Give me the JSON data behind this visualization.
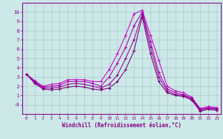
{
  "x": [
    0,
    1,
    2,
    3,
    4,
    5,
    6,
    7,
    8,
    9,
    10,
    11,
    12,
    13,
    14,
    15,
    16,
    17,
    18,
    19,
    20,
    21,
    22,
    23
  ],
  "lines": [
    [
      3.3,
      2.6,
      2.0,
      2.2,
      2.3,
      2.7,
      2.7,
      2.7,
      2.5,
      2.5,
      3.8,
      5.5,
      7.5,
      9.8,
      10.2,
      7.5,
      4.8,
      2.0,
      1.5,
      1.3,
      0.8,
      -0.4,
      -0.2,
      -0.3
    ],
    [
      3.3,
      2.5,
      1.9,
      2.0,
      2.1,
      2.5,
      2.5,
      2.5,
      2.3,
      2.0,
      3.0,
      4.5,
      6.2,
      8.5,
      10.0,
      6.8,
      3.5,
      1.7,
      1.3,
      1.1,
      0.7,
      -0.5,
      -0.3,
      -0.4
    ],
    [
      3.3,
      2.4,
      1.8,
      1.8,
      1.9,
      2.2,
      2.3,
      2.2,
      2.0,
      1.8,
      2.2,
      3.2,
      5.0,
      7.0,
      9.8,
      6.2,
      3.0,
      1.5,
      1.1,
      1.0,
      0.6,
      -0.6,
      -0.4,
      -0.5
    ],
    [
      3.3,
      2.3,
      1.7,
      1.6,
      1.7,
      1.9,
      2.0,
      1.9,
      1.7,
      1.6,
      1.8,
      2.5,
      3.8,
      5.8,
      9.5,
      5.5,
      2.5,
      1.3,
      1.0,
      0.9,
      0.5,
      -0.7,
      -0.5,
      -0.6
    ]
  ],
  "line_colors": [
    "#cc00cc",
    "#aa00aa",
    "#990099",
    "#770077"
  ],
  "bg_color": "#cce8e8",
  "grid_color": "#aac8c8",
  "axis_color": "#880088",
  "xlabel": "Windchill (Refroidissement éolien,°C)",
  "xlim": [
    -0.5,
    23.5
  ],
  "ylim": [
    -1.0,
    11.0
  ],
  "yticks": [
    0,
    1,
    2,
    3,
    4,
    5,
    6,
    7,
    8,
    9,
    10
  ],
  "xticks": [
    0,
    1,
    2,
    3,
    4,
    5,
    6,
    7,
    8,
    9,
    10,
    11,
    12,
    13,
    14,
    15,
    16,
    17,
    18,
    19,
    20,
    21,
    22,
    23
  ],
  "marker": "+",
  "markersize": 3.5,
  "linewidth": 0.8
}
